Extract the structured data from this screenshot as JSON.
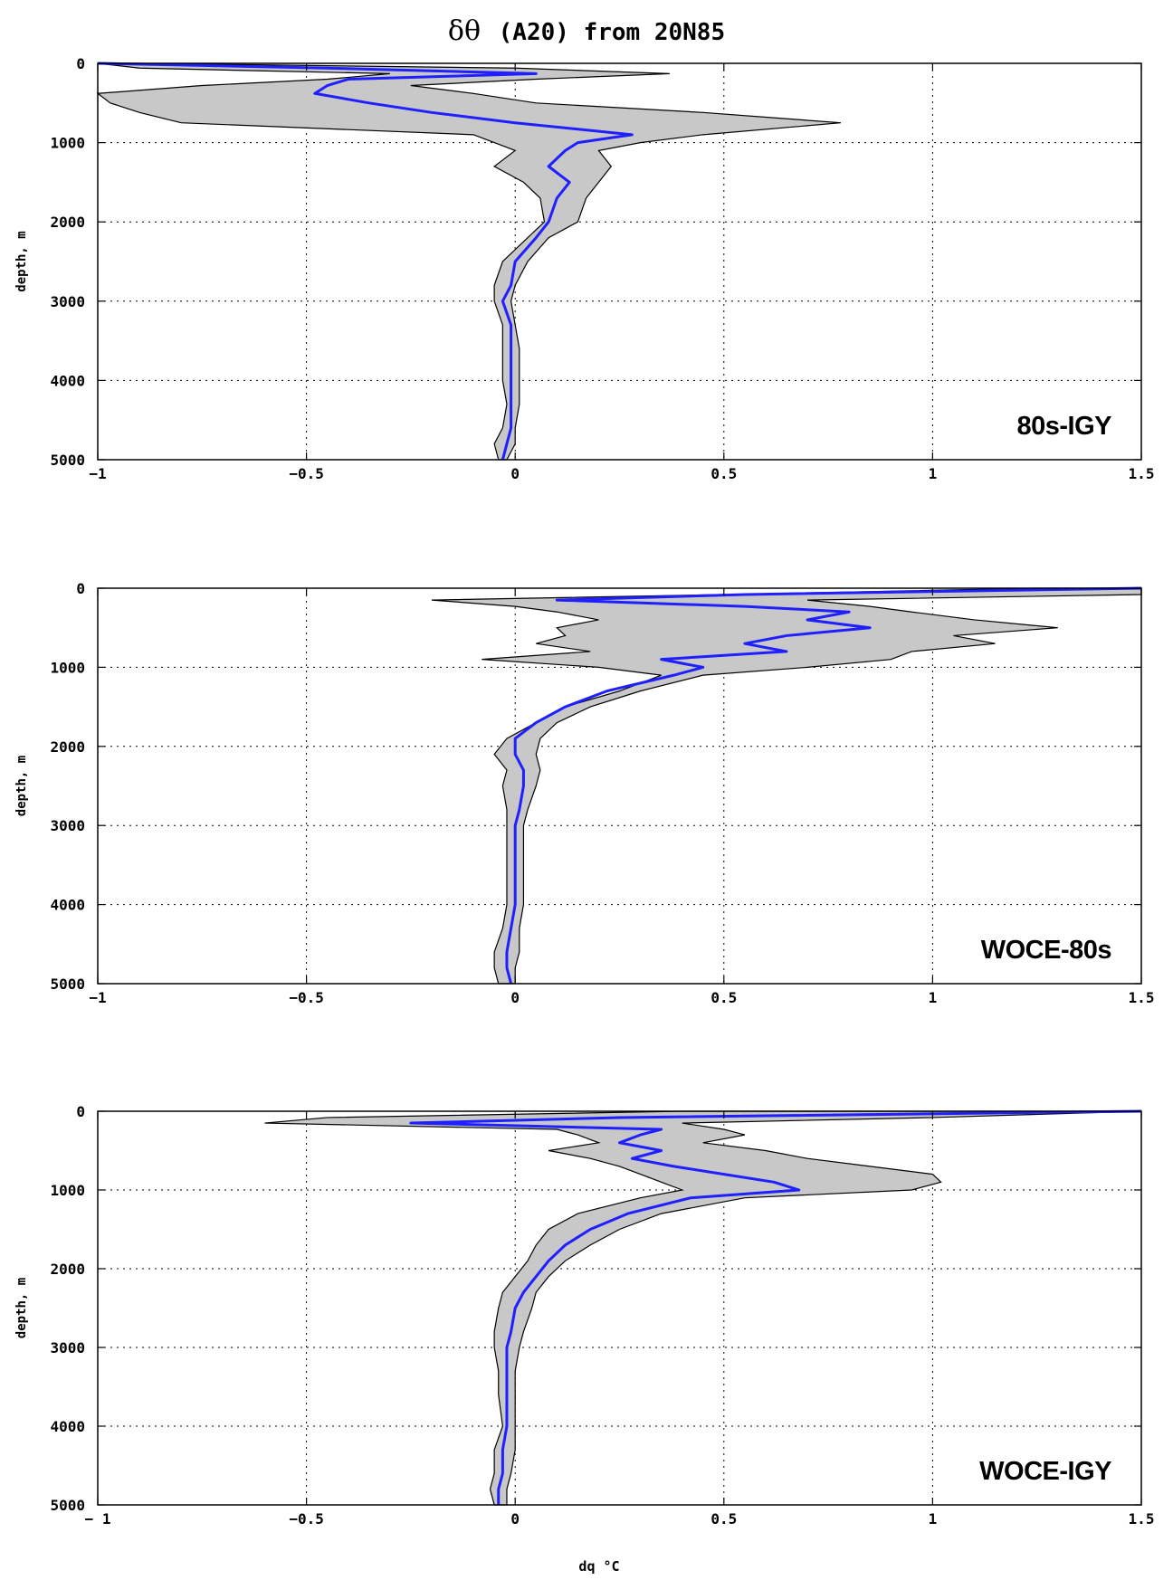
{
  "chart_data": {
    "title": "δθ (A20) from 20N85",
    "title_greek": "δθ",
    "title_rest": "(A20) from 20N85",
    "xlabel": "dq °C",
    "colors": {
      "mean": "#1f1fff",
      "band": "#c8c8c8",
      "edge": "#000000",
      "grid": "#000000"
    },
    "panels": [
      {
        "type": "area",
        "label": "80s-IGY",
        "ylabel": "depth, m",
        "xlim": [
          -1,
          1.5
        ],
        "ylim": [
          0,
          5000
        ],
        "y_inverted": true,
        "grid": true,
        "label_position": "bottom-right",
        "xticks": [
          -1,
          -0.5,
          0,
          0.5,
          1,
          1.5
        ],
        "xtick_labels": [
          "−1",
          "−0.5",
          "0",
          "0.5",
          "1",
          "1.5"
        ],
        "yticks": [
          0,
          1000,
          2000,
          3000,
          4000,
          5000
        ],
        "ytick_labels": [
          "0",
          "1000",
          "2000",
          "3000",
          "4000",
          "5000"
        ],
        "series": [
          {
            "role": "band-left",
            "depth": [
              0,
              60,
              130,
              200,
              280,
              380,
              500,
              620,
              750,
              900,
              1000,
              1100,
              1300,
              1500,
              1700,
              2000,
              2200,
              2500,
              2800,
              3000,
              3300,
              3600,
              4000,
              4300,
              4600,
              4800,
              5000
            ],
            "dq": [
              -1.0,
              -0.9,
              -0.3,
              -0.45,
              -0.75,
              -1.0,
              -0.97,
              -0.9,
              -0.8,
              -0.1,
              -0.05,
              0.0,
              -0.05,
              0.02,
              0.06,
              0.07,
              0.03,
              -0.03,
              -0.05,
              -0.05,
              -0.03,
              -0.03,
              -0.03,
              -0.02,
              -0.03,
              -0.05,
              -0.04
            ]
          },
          {
            "role": "band-right",
            "depth": [
              0,
              60,
              130,
              200,
              280,
              380,
              500,
              620,
              750,
              900,
              1000,
              1100,
              1300,
              1500,
              1700,
              2000,
              2200,
              2500,
              2800,
              3000,
              3300,
              3600,
              4000,
              4300,
              4600,
              4800,
              5000
            ],
            "dq": [
              -0.9,
              0.0,
              0.37,
              0.05,
              -0.25,
              -0.1,
              0.05,
              0.45,
              0.78,
              0.45,
              0.3,
              0.2,
              0.23,
              0.2,
              0.17,
              0.15,
              0.08,
              0.03,
              0.0,
              -0.01,
              0.0,
              0.01,
              0.01,
              0.01,
              0.0,
              0.0,
              -0.02
            ]
          },
          {
            "role": "mean",
            "name": "",
            "depth": [
              0,
              60,
              130,
              200,
              280,
              380,
              500,
              620,
              750,
              900,
              1000,
              1100,
              1300,
              1500,
              1700,
              2000,
              2200,
              2500,
              2800,
              3000,
              3300,
              3600,
              4000,
              4300,
              4600,
              4800,
              5000
            ],
            "dq": [
              -1.0,
              -0.45,
              0.05,
              -0.4,
              -0.45,
              -0.48,
              -0.35,
              -0.2,
              0.0,
              0.28,
              0.15,
              0.12,
              0.08,
              0.13,
              0.1,
              0.08,
              0.05,
              0.0,
              -0.01,
              -0.03,
              -0.01,
              -0.01,
              -0.01,
              -0.01,
              -0.01,
              -0.02,
              -0.03
            ]
          }
        ]
      },
      {
        "type": "area",
        "label": "WOCE-80s",
        "ylabel": "depth, m",
        "xlim": [
          -1,
          1.5
        ],
        "ylim": [
          0,
          5000
        ],
        "y_inverted": true,
        "grid": true,
        "label_position": "bottom-right",
        "xticks": [
          -1,
          -0.5,
          0,
          0.5,
          1,
          1.5
        ],
        "xtick_labels": [
          "−1",
          "−0.5",
          "0",
          "0.5",
          "1",
          "1.5"
        ],
        "yticks": [
          0,
          1000,
          2000,
          3000,
          4000,
          5000
        ],
        "ytick_labels": [
          "0",
          "1000",
          "2000",
          "3000",
          "4000",
          "5000"
        ],
        "series": [
          {
            "role": "band-left",
            "depth": [
              0,
              80,
              150,
              230,
              300,
              400,
              500,
              600,
              700,
              800,
              900,
              1000,
              1100,
              1300,
              1500,
              1700,
              1900,
              2100,
              2300,
              2500,
              2800,
              3000,
              3300,
              3600,
              4000,
              4300,
              4600,
              4800,
              5000
            ],
            "dq": [
              1.25,
              0.5,
              -0.2,
              0.0,
              0.1,
              0.2,
              0.1,
              0.12,
              0.05,
              0.18,
              -0.08,
              0.2,
              0.35,
              0.25,
              0.12,
              0.05,
              -0.02,
              -0.05,
              -0.02,
              -0.03,
              -0.02,
              -0.02,
              -0.02,
              -0.02,
              -0.02,
              -0.03,
              -0.05,
              -0.05,
              -0.04
            ]
          },
          {
            "role": "band-right",
            "depth": [
              0,
              80,
              150,
              230,
              300,
              400,
              500,
              600,
              700,
              800,
              900,
              1000,
              1100,
              1300,
              1500,
              1700,
              1900,
              2100,
              2300,
              2500,
              2800,
              3000,
              3300,
              3600,
              4000,
              4300,
              4600,
              4800,
              5000
            ],
            "dq": [
              1.5,
              1.5,
              0.7,
              0.85,
              0.95,
              1.1,
              1.3,
              1.05,
              1.15,
              0.95,
              0.9,
              0.7,
              0.45,
              0.3,
              0.18,
              0.1,
              0.06,
              0.05,
              0.06,
              0.05,
              0.03,
              0.02,
              0.02,
              0.02,
              0.02,
              0.01,
              0.01,
              0.0,
              0.0
            ]
          },
          {
            "role": "mean",
            "name": "",
            "depth": [
              0,
              80,
              150,
              230,
              300,
              400,
              500,
              600,
              700,
              800,
              900,
              1000,
              1100,
              1300,
              1500,
              1700,
              1900,
              2100,
              2300,
              2500,
              2800,
              3000,
              3300,
              3600,
              4000,
              4300,
              4600,
              4800,
              5000
            ],
            "dq": [
              1.5,
              0.55,
              0.1,
              0.55,
              0.8,
              0.7,
              0.85,
              0.65,
              0.55,
              0.65,
              0.35,
              0.45,
              0.38,
              0.22,
              0.12,
              0.05,
              0.0,
              0.0,
              0.02,
              0.02,
              0.01,
              0.0,
              0.0,
              0.0,
              0.0,
              -0.01,
              -0.02,
              -0.02,
              -0.01
            ]
          }
        ]
      },
      {
        "type": "area",
        "label": "WOCE-IGY",
        "ylabel": "depth, m",
        "xlim": [
          -1,
          1.5
        ],
        "ylim": [
          0,
          5000
        ],
        "y_inverted": true,
        "grid": true,
        "label_position": "bottom-right",
        "xticks": [
          -1,
          -0.5,
          0,
          0.5,
          1,
          1.5
        ],
        "xtick_labels": [
          "− 1",
          "−0.5",
          "0",
          "0.5",
          "1",
          "1.5"
        ],
        "yticks": [
          0,
          1000,
          2000,
          3000,
          4000,
          5000
        ],
        "ytick_labels": [
          "0",
          "1000",
          "2000",
          "3000",
          "4000",
          "5000"
        ],
        "series": [
          {
            "role": "band-left",
            "depth": [
              0,
              80,
              150,
              230,
              300,
              400,
              500,
              600,
              700,
              800,
              900,
              1000,
              1100,
              1300,
              1500,
              1700,
              1900,
              2100,
              2300,
              2500,
              2800,
              3000,
              3300,
              3600,
              4000,
              4300,
              4600,
              4800,
              5000
            ],
            "dq": [
              0.4,
              -0.45,
              -0.6,
              0.1,
              0.15,
              0.2,
              0.08,
              0.18,
              0.25,
              0.3,
              0.35,
              0.4,
              0.3,
              0.15,
              0.08,
              0.05,
              0.03,
              0.0,
              -0.03,
              -0.04,
              -0.05,
              -0.05,
              -0.04,
              -0.04,
              -0.03,
              -0.05,
              -0.05,
              -0.06,
              -0.05
            ]
          },
          {
            "role": "band-right",
            "depth": [
              0,
              80,
              150,
              230,
              300,
              400,
              500,
              600,
              700,
              800,
              900,
              1000,
              1100,
              1300,
              1500,
              1700,
              1900,
              2100,
              2300,
              2500,
              2800,
              3000,
              3300,
              3600,
              4000,
              4300,
              4600,
              4800,
              5000
            ],
            "dq": [
              1.5,
              1.0,
              0.4,
              0.5,
              0.55,
              0.45,
              0.6,
              0.7,
              0.85,
              1.0,
              1.02,
              0.95,
              0.55,
              0.35,
              0.25,
              0.18,
              0.12,
              0.08,
              0.05,
              0.04,
              0.02,
              0.01,
              0.0,
              0.0,
              0.0,
              0.0,
              -0.01,
              -0.02,
              -0.02
            ]
          },
          {
            "role": "mean",
            "name": "",
            "depth": [
              0,
              80,
              150,
              230,
              300,
              400,
              500,
              600,
              700,
              800,
              900,
              1000,
              1100,
              1300,
              1500,
              1700,
              1900,
              2100,
              2300,
              2500,
              2800,
              3000,
              3300,
              3600,
              4000,
              4300,
              4600,
              4800,
              5000
            ],
            "dq": [
              1.5,
              0.25,
              -0.25,
              0.35,
              0.3,
              0.25,
              0.35,
              0.28,
              0.38,
              0.5,
              0.62,
              0.68,
              0.42,
              0.27,
              0.18,
              0.12,
              0.08,
              0.05,
              0.02,
              0.0,
              -0.01,
              -0.02,
              -0.02,
              -0.02,
              -0.02,
              -0.03,
              -0.03,
              -0.04,
              -0.04
            ]
          }
        ]
      }
    ]
  }
}
